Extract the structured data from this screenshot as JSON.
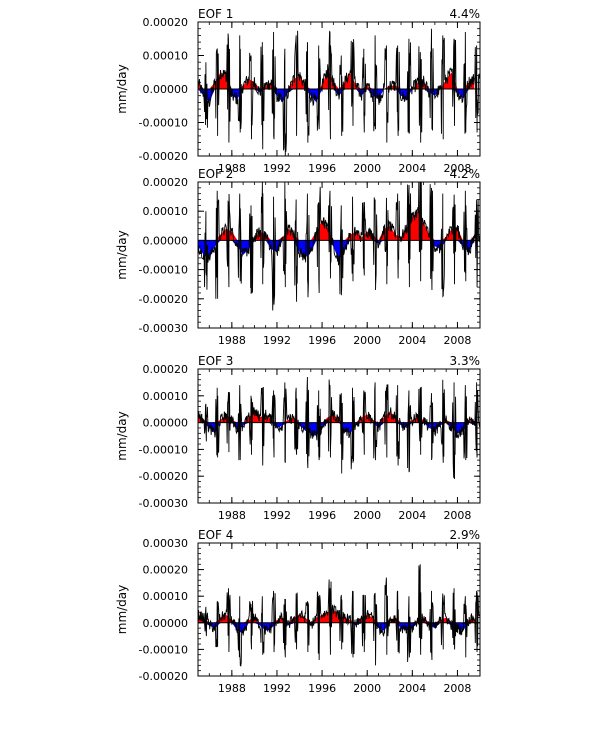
{
  "chart_data": [
    {
      "type": "area",
      "title": "EOF 1",
      "variance": "4.4%",
      "ylabel": "mm/day",
      "xlim": [
        1985,
        2010
      ],
      "ylim": [
        -0.0002,
        0.0002
      ],
      "yticks": [
        -0.0002,
        -0.0001,
        0.0,
        0.0001,
        0.0002
      ],
      "ytick_labels": [
        "-0.00020",
        "-0.00010",
        "0.00000",
        "0.00010",
        "0.00020"
      ],
      "xticks": [
        1988,
        1992,
        1996,
        2000,
        2004,
        2008
      ],
      "xtick_labels": [
        "1988",
        "1992",
        "1996",
        "2000",
        "2004",
        "2008"
      ],
      "peak_pos": [
        8e-05,
        0.00011,
        0.00015,
        0.00016,
        0.0001,
        0.00014,
        0.00017,
        0.00012,
        0.00016,
        0.00014,
        0.00013,
        0.00017,
        0.0001,
        0.00014,
        0.00012,
        0.00016,
        0.00013,
        0.00013,
        0.00015,
        0.00011,
        0.00018,
        0.00016,
        0.00015,
        0.00017,
        0.00013
      ],
      "peak_neg": [
        -9e-05,
        -0.00014,
        -0.00016,
        -0.00013,
        -0.00015,
        -0.00018,
        -0.00015,
        -0.0002,
        -0.00014,
        -0.00016,
        -0.00012,
        -0.00015,
        -0.00014,
        -0.00011,
        -0.00013,
        -0.00012,
        -0.00016,
        -0.00014,
        -0.00013,
        -0.00016,
        -0.00012,
        -0.00015,
        -0.00011,
        -0.00013,
        -0.00013
      ],
      "smooth_x": [
        1985.0,
        1985.5,
        1986.0,
        1986.5,
        1987.0,
        1987.5,
        1988.0,
        1988.5,
        1989.0,
        1989.5,
        1990.0,
        1990.5,
        1991.0,
        1991.5,
        1992.0,
        1992.5,
        1993.0,
        1993.5,
        1994.0,
        1994.5,
        1995.0,
        1995.5,
        1996.0,
        1996.5,
        1997.0,
        1997.5,
        1998.0,
        1998.5,
        1999.0,
        1999.5,
        2000.0,
        2000.5,
        2001.0,
        2001.5,
        2002.0,
        2002.5,
        2003.0,
        2003.5,
        2004.0,
        2004.5,
        2005.0,
        2005.5,
        2006.0,
        2006.5,
        2007.0,
        2007.5,
        2008.0,
        2008.5,
        2009.0,
        2009.5
      ],
      "smooth_y": [
        2e-05,
        -2e-05,
        -4e-05,
        2e-05,
        5e-05,
        4e-05,
        -2e-05,
        -3e-05,
        1e-05,
        3e-05,
        2e-05,
        -1e-05,
        1e-05,
        2e-05,
        -2e-05,
        -4e-05,
        -1e-05,
        3e-05,
        4e-05,
        1e-05,
        -2e-05,
        -4e-05,
        1e-05,
        6e-05,
        2e-05,
        -2e-05,
        2e-05,
        5e-05,
        1e-05,
        -2e-05,
        1e-05,
        -2e-05,
        -3e-05,
        0.0,
        1e-05,
        1e-05,
        -2e-05,
        -3e-05,
        0.0,
        2e-05,
        2e-05,
        -1e-05,
        -2e-05,
        0.0,
        3e-05,
        5e-05,
        -1e-05,
        -3e-05,
        2e-05,
        3e-05
      ]
    },
    {
      "type": "area",
      "title": "EOF 2",
      "variance": "4.2%",
      "ylabel": "mm/day",
      "xlim": [
        1985,
        2010
      ],
      "ylim": [
        -0.0003,
        0.0002
      ],
      "yticks": [
        -0.0003,
        -0.0002,
        -0.0001,
        0.0,
        0.0001,
        0.0002
      ],
      "ytick_labels": [
        "-0.00030",
        "-0.00020",
        "-0.00010",
        "0.00000",
        "0.00010",
        "0.00020"
      ],
      "xticks": [
        1988,
        1992,
        1996,
        2000,
        2004,
        2008
      ],
      "xtick_labels": [
        "1988",
        "1992",
        "1996",
        "2000",
        "2004",
        "2008"
      ],
      "peak_pos": [
        0.0001,
        0.00017,
        0.00013,
        0.00016,
        0.00012,
        0.00018,
        0.00015,
        0.0002,
        0.00014,
        0.00016,
        0.00013,
        0.00017,
        0.00012,
        0.00015,
        0.00013,
        0.00014,
        0.00012,
        0.00016,
        0.00015,
        0.00019,
        0.00018,
        0.00016,
        0.00014,
        0.00017,
        0.00014
      ],
      "peak_neg": [
        -0.00012,
        -0.0002,
        -0.00016,
        -0.00014,
        -0.00018,
        -0.00015,
        -0.00022,
        -0.00016,
        -0.00021,
        -0.00015,
        -0.00018,
        -0.00013,
        -0.00016,
        -0.00014,
        -0.00012,
        -0.00017,
        -0.00015,
        -0.00013,
        -0.00016,
        -0.00014,
        -0.00017,
        -0.00019,
        -0.00015,
        -0.00014,
        -0.00016
      ],
      "smooth_x": [
        1985.0,
        1985.5,
        1986.0,
        1986.5,
        1987.0,
        1987.5,
        1988.0,
        1988.5,
        1989.0,
        1989.5,
        1990.0,
        1990.5,
        1991.0,
        1991.5,
        1992.0,
        1992.5,
        1993.0,
        1993.5,
        1994.0,
        1994.5,
        1995.0,
        1995.5,
        1996.0,
        1996.5,
        1997.0,
        1997.5,
        1998.0,
        1998.5,
        1999.0,
        1999.5,
        2000.0,
        2000.5,
        2001.0,
        2001.5,
        2002.0,
        2002.5,
        2003.0,
        2003.5,
        2004.0,
        2004.5,
        2005.0,
        2005.5,
        2006.0,
        2006.5,
        2007.0,
        2007.5,
        2008.0,
        2008.5,
        2009.0,
        2009.5
      ],
      "smooth_y": [
        -2e-05,
        -5e-05,
        -6e-05,
        -2e-05,
        2e-05,
        4e-05,
        3e-05,
        -2e-05,
        -5e-05,
        -3e-05,
        1e-05,
        3e-05,
        2e-05,
        -3e-05,
        -4e-05,
        1e-05,
        4e-05,
        2e-05,
        -4e-05,
        -6e-05,
        -4e-05,
        3e-05,
        7e-05,
        4e-05,
        -2e-05,
        -7e-05,
        -3e-05,
        2e-05,
        3e-05,
        1e-05,
        3e-05,
        2e-05,
        -1e-05,
        4e-05,
        5e-05,
        2e-05,
        1e-05,
        4e-05,
        8e-05,
        0.0001,
        6e-05,
        2e-05,
        -2e-05,
        -3e-05,
        1e-05,
        4e-05,
        4e-05,
        -2e-05,
        -4e-05,
        1e-05
      ]
    },
    {
      "type": "area",
      "title": "EOF 3",
      "variance": "3.3%",
      "ylabel": "mm/day",
      "xlim": [
        1985,
        2010
      ],
      "ylim": [
        -0.0003,
        0.0002
      ],
      "yticks": [
        -0.0003,
        -0.0002,
        -0.0001,
        0.0,
        0.0001,
        0.0002
      ],
      "ytick_labels": [
        "-0.00030",
        "-0.00020",
        "-0.00010",
        "0.00000",
        "0.00010",
        "0.00020"
      ],
      "xticks": [
        1988,
        1992,
        1996,
        2000,
        2004,
        2008
      ],
      "xtick_labels": [
        "1988",
        "1992",
        "1996",
        "2000",
        "2004",
        "2008"
      ],
      "peak_pos": [
        7e-05,
        0.00013,
        0.00011,
        0.00014,
        0.0001,
        0.00013,
        0.00012,
        0.00015,
        0.00013,
        0.00017,
        0.00012,
        0.00014,
        0.00011,
        0.00013,
        0.00012,
        0.00015,
        0.00013,
        0.00014,
        0.00012,
        0.00013,
        0.00011,
        0.00016,
        0.00015,
        0.00014,
        0.00015
      ],
      "peak_neg": [
        -7e-05,
        -0.00013,
        -0.00011,
        -0.00014,
        -0.00012,
        -0.00016,
        -0.00013,
        -0.00015,
        -0.00012,
        -0.00017,
        -0.00014,
        -0.00013,
        -0.00019,
        -0.00015,
        -0.00012,
        -0.00014,
        -0.00013,
        -0.00016,
        -0.00018,
        -0.00012,
        -0.00013,
        -0.00015,
        -0.00021,
        -0.00014,
        -0.00013
      ],
      "smooth_x": [
        1985.0,
        1985.5,
        1986.0,
        1986.5,
        1987.0,
        1987.5,
        1988.0,
        1988.5,
        1989.0,
        1989.5,
        1990.0,
        1990.5,
        1991.0,
        1991.5,
        1992.0,
        1992.5,
        1993.0,
        1993.5,
        1994.0,
        1994.5,
        1995.0,
        1995.5,
        1996.0,
        1996.5,
        1997.0,
        1997.5,
        1998.0,
        1998.5,
        1999.0,
        1999.5,
        2000.0,
        2000.5,
        2001.0,
        2001.5,
        2002.0,
        2002.5,
        2003.0,
        2003.5,
        2004.0,
        2004.5,
        2005.0,
        2005.5,
        2006.0,
        2006.5,
        2007.0,
        2007.5,
        2008.0,
        2008.5,
        2009.0,
        2009.5
      ],
      "smooth_y": [
        3e-05,
        1e-05,
        -2e-05,
        -4e-05,
        1e-05,
        3e-05,
        1e-05,
        -3e-05,
        -1e-05,
        2e-05,
        4e-05,
        2e-05,
        3e-05,
        1e-05,
        -2e-05,
        -1e-05,
        1e-05,
        2e-05,
        -1e-05,
        -3e-05,
        -4e-05,
        -5e-05,
        -2e-05,
        2e-05,
        3e-05,
        1e-05,
        -3e-05,
        -4e-05,
        -1e-05,
        2e-05,
        3e-05,
        1e-05,
        -2e-05,
        2e-05,
        4e-05,
        2e-05,
        -1e-05,
        -2e-05,
        1e-05,
        2e-05,
        1e-05,
        -2e-05,
        -3e-05,
        -1e-05,
        1e-05,
        -2e-05,
        -4e-05,
        -3e-05,
        1e-05,
        -1e-05
      ]
    },
    {
      "type": "area",
      "title": "EOF 4",
      "variance": "2.9%",
      "ylabel": "mm/day",
      "xlim": [
        1985,
        2010
      ],
      "ylim": [
        -0.0002,
        0.0003
      ],
      "yticks": [
        -0.0002,
        -0.0001,
        0.0,
        0.0001,
        0.0002,
        0.0003
      ],
      "ytick_labels": [
        "-0.00020",
        "-0.00010",
        "0.00000",
        "0.00010",
        "0.00020",
        "0.00030"
      ],
      "xticks": [
        1988,
        1992,
        1996,
        2000,
        2004,
        2008
      ],
      "xtick_labels": [
        "1988",
        "1992",
        "1996",
        "2000",
        "2004",
        "2008"
      ],
      "peak_pos": [
        6e-05,
        8e-05,
        0.00013,
        0.0001,
        7e-05,
        0.0001,
        0.00012,
        9e-05,
        0.00011,
        8e-05,
        0.0001,
        0.00013,
        0.0001,
        0.00012,
        9e-05,
        0.00011,
        0.00017,
        0.00012,
        0.0001,
        0.00022,
        0.00012,
        0.00011,
        0.00013,
        0.0001,
        0.00012
      ],
      "peak_neg": [
        -5e-05,
        -9e-05,
        -0.00011,
        -0.00014,
        -0.0001,
        -0.00012,
        -0.00011,
        -0.00013,
        -0.0001,
        -0.00011,
        -0.00014,
        -0.00012,
        -0.0001,
        -0.00013,
        -0.00011,
        -0.00016,
        -0.00012,
        -0.00011,
        -0.00013,
        -0.00012,
        -0.00014,
        -0.0001,
        -9e-05,
        -0.00013,
        -0.00011
      ],
      "smooth_x": [
        1985.0,
        1985.5,
        1986.0,
        1986.5,
        1987.0,
        1987.5,
        1988.0,
        1988.5,
        1989.0,
        1989.5,
        1990.0,
        1990.5,
        1991.0,
        1991.5,
        1992.0,
        1992.5,
        1993.0,
        1993.5,
        1994.0,
        1994.5,
        1995.0,
        1995.5,
        1996.0,
        1996.5,
        1997.0,
        1997.5,
        1998.0,
        1998.5,
        1999.0,
        1999.5,
        2000.0,
        2000.5,
        2001.0,
        2001.5,
        2002.0,
        2002.5,
        2003.0,
        2003.5,
        2004.0,
        2004.5,
        2005.0,
        2005.5,
        2006.0,
        2006.5,
        2007.0,
        2007.5,
        2008.0,
        2008.5,
        2009.0,
        2009.5
      ],
      "smooth_y": [
        3e-05,
        2e-05,
        -1e-05,
        -2e-05,
        2e-05,
        3e-05,
        1e-05,
        -3e-05,
        -4e-05,
        1e-05,
        2e-05,
        -1e-05,
        -3e-05,
        -2e-05,
        1e-05,
        2e-05,
        -1e-05,
        2e-05,
        3e-05,
        2e-05,
        -1e-05,
        2e-05,
        3e-05,
        4e-05,
        5e-05,
        3e-05,
        2e-05,
        1e-05,
        -1e-05,
        2e-05,
        3e-05,
        2e-05,
        -2e-05,
        -3e-05,
        1e-05,
        2e-05,
        -2e-05,
        -3e-05,
        -2e-05,
        1e-05,
        2e-05,
        -1e-05,
        -2e-05,
        1e-05,
        2e-05,
        -1e-05,
        -2e-05,
        -3e-05,
        1e-05,
        2e-05
      ]
    }
  ],
  "colors": {
    "positive_fill": "#ff0000",
    "negative_fill": "#0000ff",
    "line": "#000000",
    "line_tint_positive": "#8a1a1a",
    "line_tint_negative": "#1a1a6a"
  }
}
